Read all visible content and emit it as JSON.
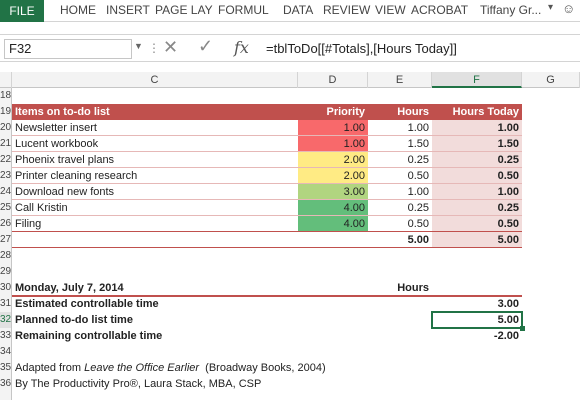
{
  "ribbon": {
    "file": "FILE",
    "tabs": [
      "HOME",
      "INSERT",
      "PAGE LAY",
      "FORMUL",
      "DATA",
      "REVIEW",
      "VIEW",
      "ACROBAT"
    ],
    "user": "Tiffany Gr..."
  },
  "formula_bar": {
    "name_box": "F32",
    "formula": "=tblToDo[[#Totals],[Hours Today]]"
  },
  "columns": [
    "C",
    "D",
    "E",
    "F",
    "G"
  ],
  "selected_column": "F",
  "rows": [
    "18",
    "19",
    "20",
    "21",
    "22",
    "23",
    "24",
    "25",
    "26",
    "27",
    "28",
    "29",
    "30",
    "31",
    "32",
    "33",
    "34",
    "35",
    "36"
  ],
  "selected_row": "32",
  "table": {
    "headers": [
      "Items on to-do list",
      "Priority",
      "Hours",
      "Hours Today"
    ],
    "items": [
      {
        "name": "Newsletter insert",
        "priority": "1.00",
        "hours": "1.00",
        "today": "1.00",
        "color": "#f8696b"
      },
      {
        "name": "Lucent workbook",
        "priority": "1.00",
        "hours": "1.50",
        "today": "1.50",
        "color": "#f8696b"
      },
      {
        "name": "Phoenix travel plans",
        "priority": "2.00",
        "hours": "0.25",
        "today": "0.25",
        "color": "#ffeb84"
      },
      {
        "name": "Printer cleaning research",
        "priority": "2.00",
        "hours": "0.50",
        "today": "0.50",
        "color": "#ffeb84"
      },
      {
        "name": "Download new fonts",
        "priority": "3.00",
        "hours": "1.00",
        "today": "1.00",
        "color": "#b1d580"
      },
      {
        "name": "Call Kristin",
        "priority": "4.00",
        "hours": "0.25",
        "today": "0.25",
        "color": "#63be7b"
      },
      {
        "name": "Filing",
        "priority": "4.00",
        "hours": "0.50",
        "today": "0.50",
        "color": "#63be7b"
      }
    ],
    "totals": {
      "hours": "5.00",
      "today": "5.00"
    }
  },
  "summary": {
    "date": "Monday, July 7, 2014",
    "hours_label": "Hours",
    "rows": [
      {
        "label": "Estimated controllable time",
        "value": "3.00"
      },
      {
        "label": "Planned to-do list time",
        "value": "5.00"
      },
      {
        "label": "Remaining controllable time",
        "value": "-2.00"
      }
    ]
  },
  "credits": {
    "line1_prefix": "Adapted from ",
    "line1_title": "Leave the Office Earlier",
    "line1_suffix": "  (Broadway Books, 2004)",
    "line2": "By The Productivity Pro®, Laura Stack, MBA, CSP"
  }
}
